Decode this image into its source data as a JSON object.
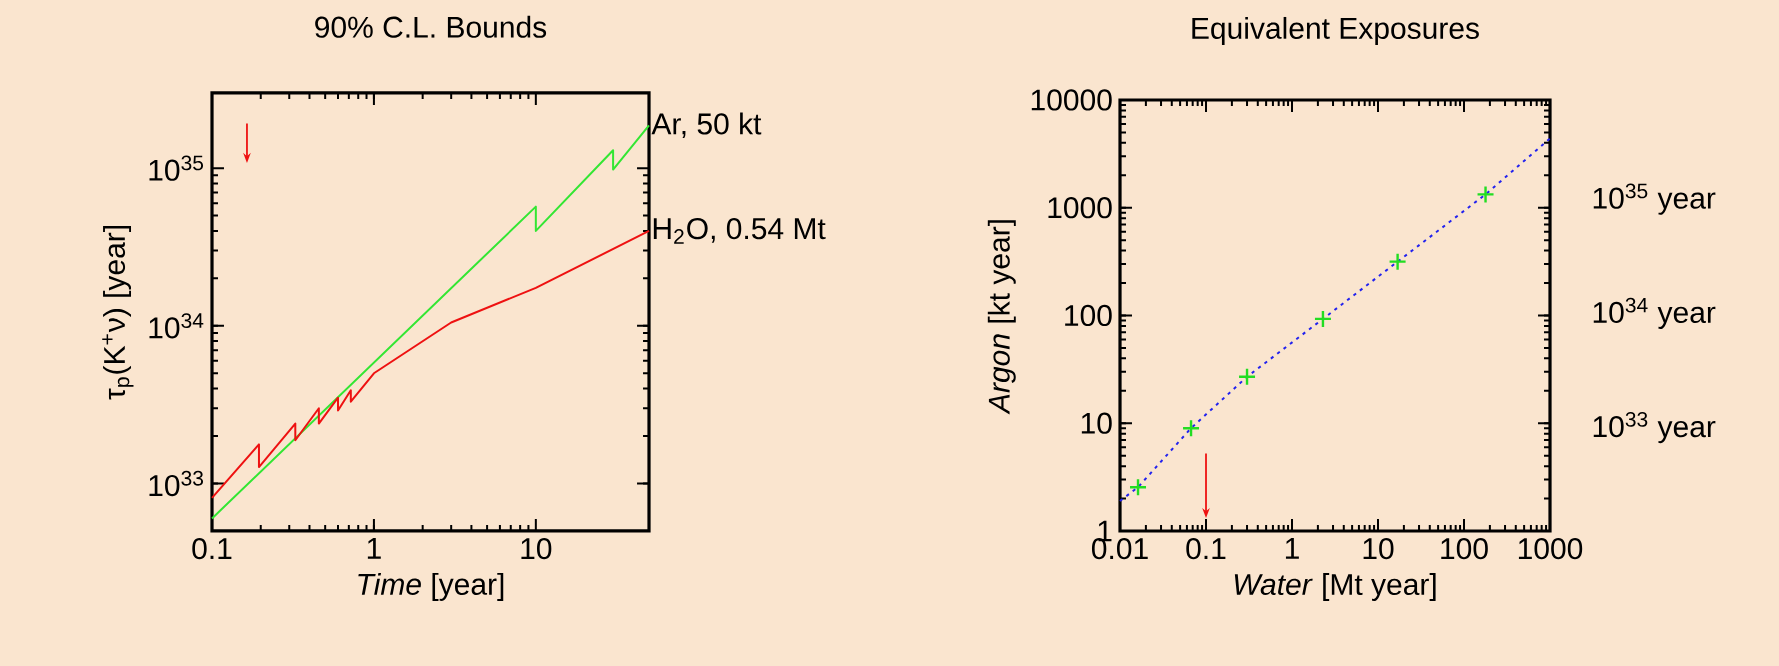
{
  "chart_data": [
    {
      "type": "line",
      "title": "90% C.L. Bounds",
      "xlabel": "*Time* [year]",
      "ylabel": "τ$_{p}$(K$^{+}$ν) [year]",
      "log": "xy",
      "xlim": [
        0.1,
        50
      ],
      "ylim": [
        5e+32,
        3e+35
      ],
      "xticks": [
        0.1,
        1,
        10
      ],
      "yticks": [
        {
          "value": 1e+33,
          "label": "10$^{33}$"
        },
        {
          "value": 1e+34,
          "label": "10$^{34}$"
        },
        {
          "value": 1e+35,
          "label": "10$^{35}$"
        }
      ],
      "series": [
        {
          "name": "Ar, 50 kt",
          "color": "#33e633",
          "marker": "none",
          "x": [
            0.1,
            10,
            10,
            30,
            30,
            50
          ],
          "values": [
            6e+32,
            5.7e+34,
            4e+34,
            1.3e+35,
            9.8e+34,
            1.87e+35
          ]
        },
        {
          "name": "H$_{2}$O, 0.54 Mt",
          "color": "#ee1111",
          "marker": "none",
          "x": [
            0.1,
            0.195,
            0.195,
            0.327,
            0.327,
            0.457,
            0.457,
            0.6,
            0.6,
            0.72,
            0.72,
            1,
            3,
            10,
            50
          ],
          "values": [
            8.1e+32,
            1.77e+33,
            1.27e+33,
            2.4e+33,
            1.88e+33,
            3e+33,
            2.4e+33,
            3.5e+33,
            2.9e+33,
            3.9e+33,
            3.3e+33,
            5e+33,
            1.05e+34,
            1.74e+34,
            4e+34
          ]
        }
      ]
    },
    {
      "type": "scatter",
      "title": "Equivalent Exposures",
      "xlabel": "*Water* [Mt year]",
      "ylabel": "*Argon* [kt year]",
      "log": "xy",
      "xlim": [
        0.01,
        1000
      ],
      "ylim": [
        1,
        10000
      ],
      "xticks": [
        0.01,
        0.1,
        1,
        10,
        100,
        1000
      ],
      "yticks": [
        1,
        10,
        100,
        1000,
        10000
      ],
      "annotations": [
        "10$^{35}$ year",
        "10$^{34}$ year",
        "10$^{33}$ year"
      ],
      "series": [
        {
          "type": "scatter",
          "color": "#22dd22",
          "marker": "cross",
          "x": [
            0.0162,
            0.067,
            0.3,
            2.29,
            16.9,
            178
          ],
          "values": [
            2.55,
            9.0,
            27,
            93,
            316,
            1330
          ]
        },
        {
          "type": "line",
          "color": "#2222ee",
          "marker": "none",
          "line_style": "dotted",
          "x": [
            0.01,
            0.0162,
            0.067,
            0.3,
            2.29,
            16.9,
            178,
            1000
          ],
          "values": [
            1.9,
            2.55,
            9.0,
            27,
            93,
            316,
            1330,
            4400
          ]
        }
      ]
    }
  ]
}
